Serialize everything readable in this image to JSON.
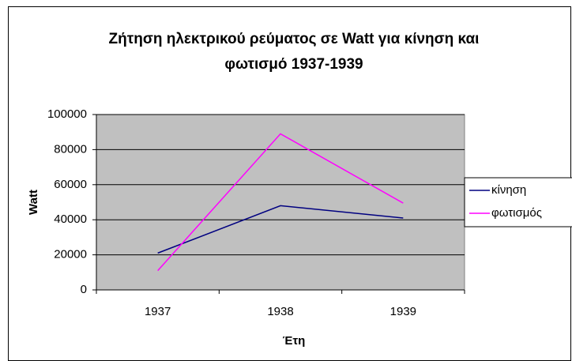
{
  "chart_data": {
    "type": "line",
    "title": "Ζήτηση ηλεκτρικού ρεύματος σε Watt για κίνηση και",
    "subtitle": "φωτισμό 1937-1939",
    "x_label": "Έτη",
    "y_label": "Watt",
    "categories": [
      "1937",
      "1938",
      "1939"
    ],
    "series": [
      {
        "name": "κίνηση",
        "color": "#000080",
        "values": [
          21000,
          48000,
          41000
        ]
      },
      {
        "name": "φωτισμός",
        "color": "#ff00ff",
        "values": [
          11000,
          89000,
          49500
        ]
      }
    ],
    "ylim": [
      0,
      100000
    ],
    "yticks": [
      0,
      20000,
      40000,
      60000,
      80000,
      100000
    ],
    "grid": true,
    "legend": "right",
    "plot_background": "#c0c0c0"
  }
}
